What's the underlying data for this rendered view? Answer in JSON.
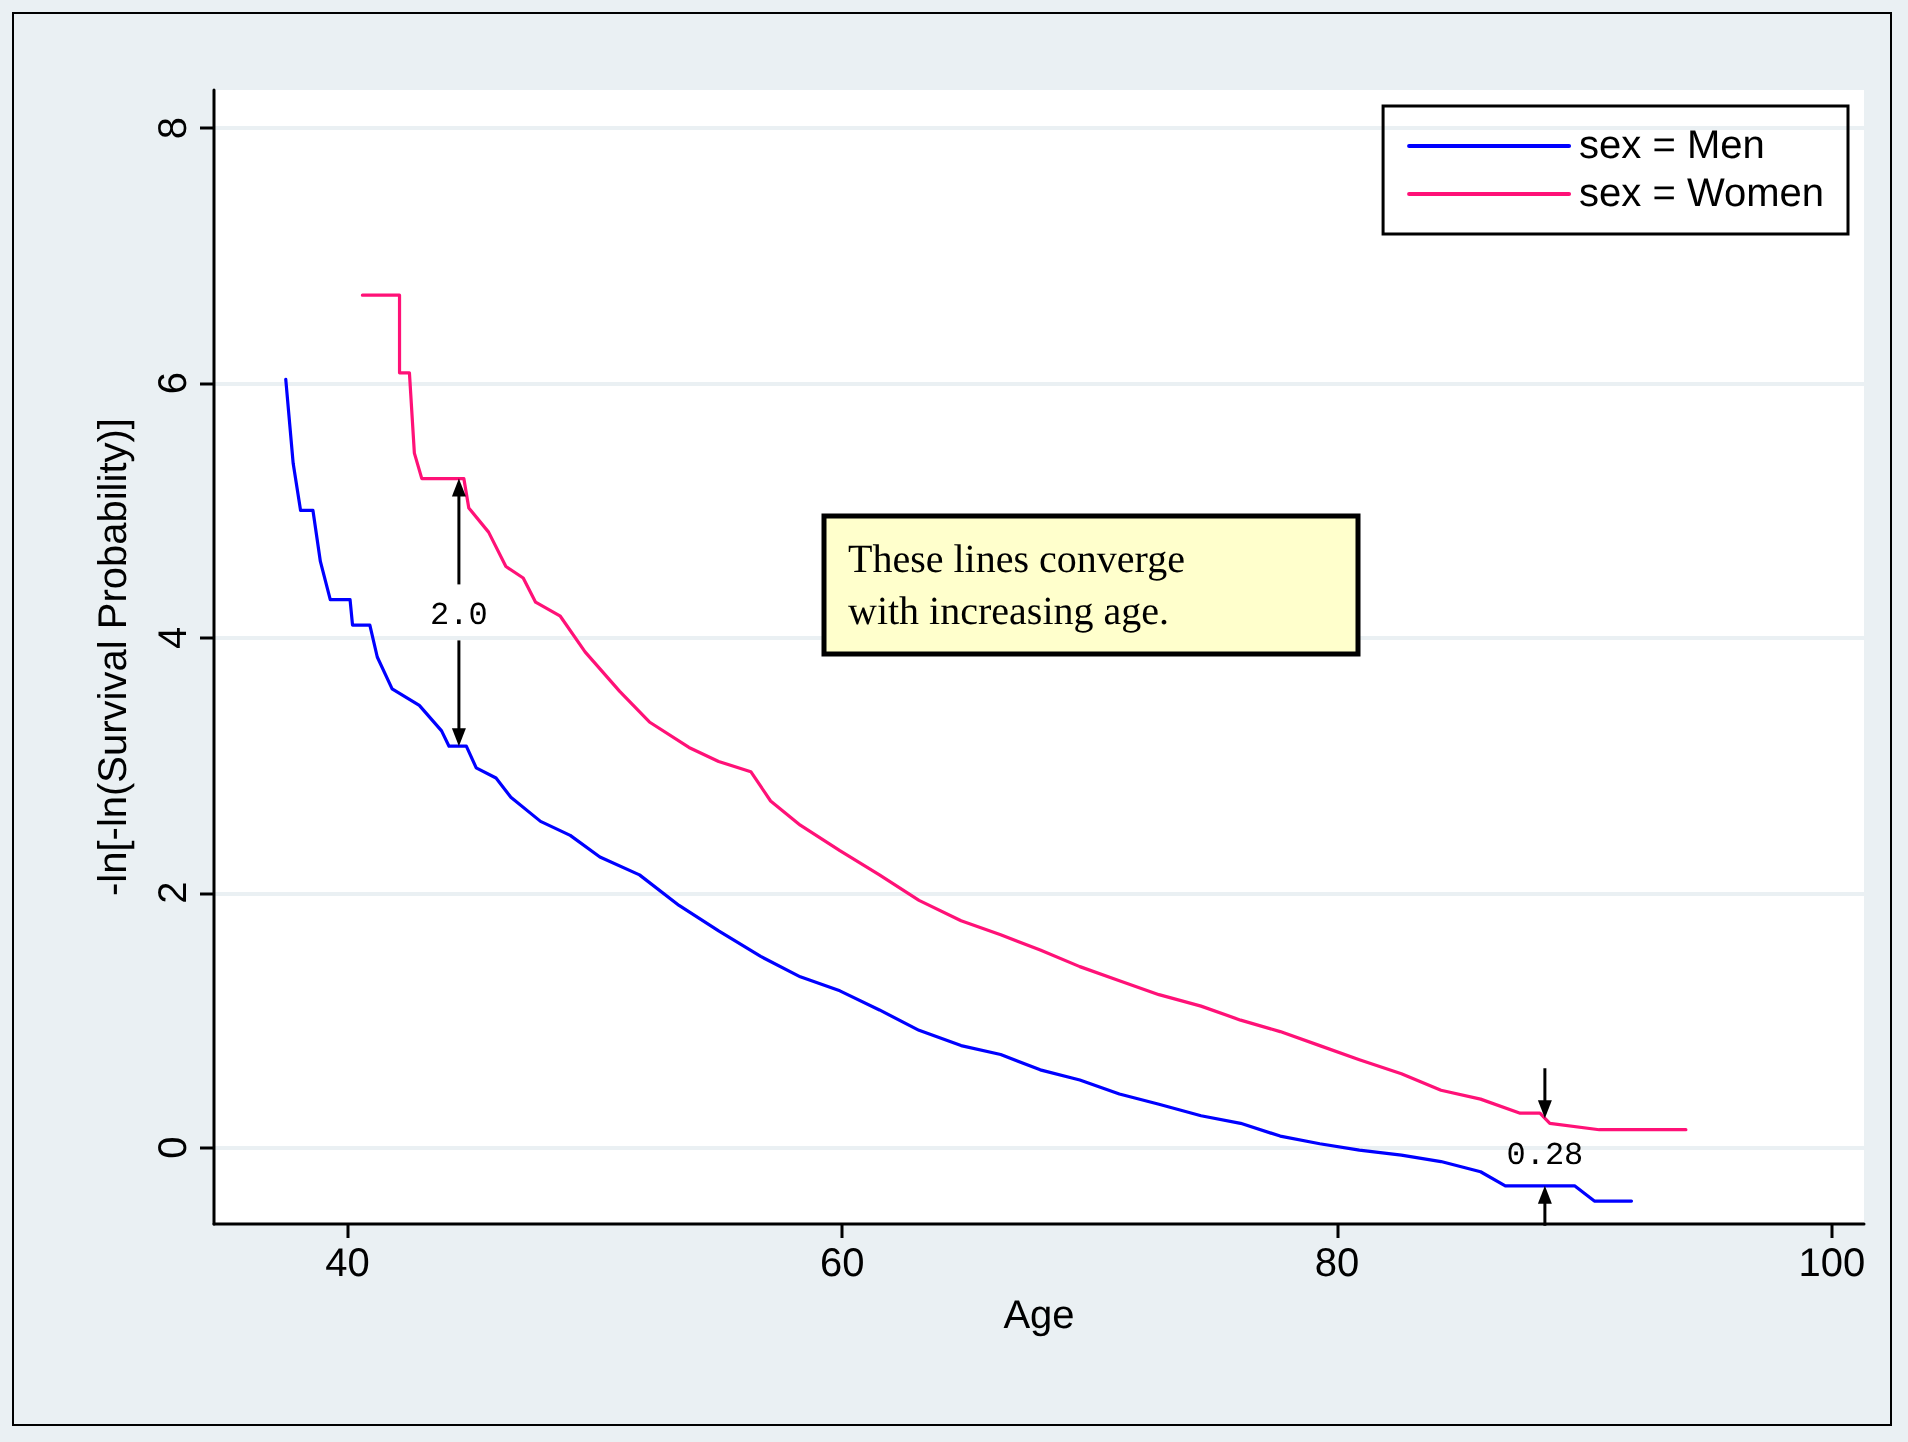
{
  "chart_data": {
    "type": "line",
    "xlabel": "Age",
    "ylabel": "-ln[-ln(Survival Probability)]",
    "xlim": [
      34.6,
      101.3
    ],
    "ylim": [
      -0.6,
      8.3
    ],
    "xticks": [
      40,
      60,
      80,
      100
    ],
    "yticks": [
      0,
      2,
      4,
      6,
      8
    ],
    "grid": "y",
    "legend": "top right",
    "marker": "none",
    "line_style": "solid",
    "series": [
      {
        "name": "sex = Men",
        "color": "#0000ff",
        "x": [
          37.5,
          37.8,
          38.1,
          38.6,
          38.9,
          39.3,
          40.1,
          40.2,
          40.9,
          41.2,
          41.8,
          42.9,
          43.8,
          44.1,
          44.8,
          45.2,
          46.0,
          46.6,
          47.8,
          49.0,
          50.2,
          51.8,
          53.4,
          55.0,
          56.7,
          58.3,
          59.9,
          61.5,
          63.1,
          64.8,
          66.4,
          68.0,
          69.6,
          71.2,
          72.8,
          74.5,
          76.1,
          77.7,
          79.3,
          80.9,
          82.6,
          84.2,
          85.8,
          86.8,
          89.6,
          90.4,
          91.9
        ],
        "values": [
          6.03,
          5.37,
          5.0,
          5.0,
          4.6,
          4.3,
          4.3,
          4.1,
          4.1,
          3.85,
          3.6,
          3.47,
          3.27,
          3.15,
          3.15,
          2.98,
          2.9,
          2.75,
          2.56,
          2.45,
          2.28,
          2.14,
          1.9,
          1.7,
          1.5,
          1.34,
          1.23,
          1.08,
          0.92,
          0.8,
          0.73,
          0.61,
          0.53,
          0.42,
          0.34,
          0.25,
          0.19,
          0.09,
          0.03,
          -0.02,
          -0.06,
          -0.11,
          -0.19,
          -0.3,
          -0.3,
          -0.42,
          -0.42
        ]
      },
      {
        "name": "sex = Women",
        "color": "#ff1177",
        "x": [
          40.6,
          42.1,
          42.1,
          42.5,
          42.7,
          43.0,
          44.7,
          44.9,
          45.7,
          46.4,
          47.1,
          47.6,
          48.6,
          49.6,
          51.0,
          52.2,
          53.8,
          55.0,
          56.3,
          57.1,
          58.3,
          59.9,
          61.5,
          63.1,
          64.8,
          66.4,
          68.0,
          69.6,
          71.2,
          72.8,
          74.5,
          76.1,
          77.7,
          79.3,
          80.9,
          82.6,
          84.2,
          85.8,
          87.4,
          88.2,
          88.6,
          90.6,
          94.1
        ],
        "values": [
          6.69,
          6.69,
          6.08,
          6.08,
          5.45,
          5.25,
          5.25,
          5.02,
          4.83,
          4.56,
          4.47,
          4.28,
          4.17,
          3.89,
          3.58,
          3.34,
          3.14,
          3.03,
          2.95,
          2.72,
          2.53,
          2.33,
          2.14,
          1.94,
          1.78,
          1.67,
          1.55,
          1.42,
          1.31,
          1.2,
          1.11,
          1.0,
          0.91,
          0.8,
          0.69,
          0.58,
          0.45,
          0.38,
          0.27,
          0.27,
          0.19,
          0.14,
          0.14
        ]
      }
    ],
    "annotations": [
      "These lines converge with increasing age.",
      {
        "text": "2.0",
        "x": 44.5,
        "y": 5.25
      },
      {
        "text": "0.28",
        "x": 88.4,
        "y": 0.23
      }
    ]
  }
}
